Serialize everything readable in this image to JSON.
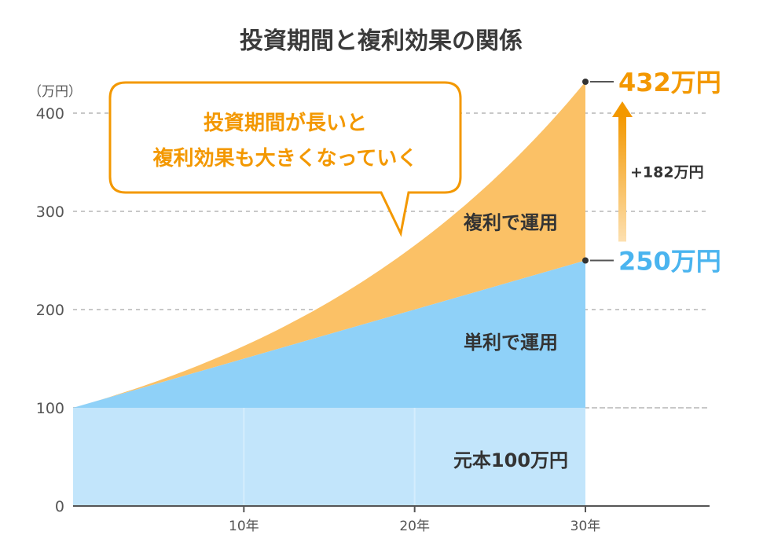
{
  "chart_data": {
    "type": "area",
    "title": "投資期間と複利効果の関係",
    "y_unit": "（万円）",
    "ylim": [
      0,
      400
    ],
    "xlim": [
      0,
      30
    ],
    "y_ticks": [
      0,
      100,
      200,
      300,
      400
    ],
    "y_tick_labels": [
      "0",
      "100",
      "200",
      "300",
      "400"
    ],
    "x_ticks": [
      10,
      20,
      30
    ],
    "x_tick_labels": [
      "10年",
      "20年",
      "30年"
    ],
    "grid": true,
    "principal": 100,
    "series": [
      {
        "name": "元本100万円",
        "x": [
          0,
          30
        ],
        "values": [
          100,
          100
        ],
        "color": "#c2e5fb"
      },
      {
        "name": "単利で運用",
        "x": [
          0,
          5,
          10,
          15,
          20,
          25,
          30
        ],
        "values": [
          100,
          125,
          150,
          175,
          200,
          225,
          250
        ],
        "color": "#8fd1f8"
      },
      {
        "name": "複利で運用",
        "x": [
          0,
          5,
          10,
          15,
          20,
          25,
          30
        ],
        "values": [
          100,
          128,
          163,
          208,
          265,
          339,
          432
        ],
        "color": "#fbc166"
      }
    ],
    "end_labels": {
      "compound": {
        "text": "432万円",
        "value": 432,
        "color": "#f39800"
      },
      "simple": {
        "text": "250万円",
        "value": 250,
        "color": "#4ab4ef"
      },
      "difference": "+182万円"
    },
    "annotation_lines": [
      "投資期間が長いと",
      "複利効果も大きくなっていく"
    ]
  },
  "colors": {
    "axis": "#555555",
    "grid": "#c8c8c8",
    "accent": "#f39800"
  }
}
